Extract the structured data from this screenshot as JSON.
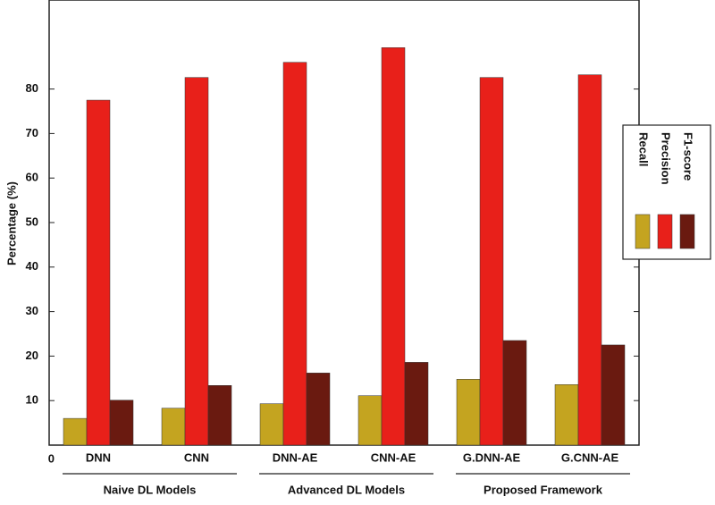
{
  "chart_data": {
    "type": "bar",
    "y_label": "Percentage (%)",
    "categories": [
      "DNN",
      "CNN",
      "DNN-AE",
      "CNN-AE",
      "G.DNN-AE",
      "G.CNN-AE"
    ],
    "groups": [
      {
        "name": "Naive DL Models",
        "span": 2
      },
      {
        "name": "Advanced DL Models",
        "span": 2
      },
      {
        "name": "Proposed Framework",
        "span": 2
      }
    ],
    "series": [
      {
        "name": "Recall",
        "color": "#c4a420",
        "values": [
          6,
          8.3,
          9.3,
          11.1,
          14.8,
          13.6
        ]
      },
      {
        "name": "Precision",
        "color": "#e8201a",
        "values": [
          77.5,
          82.6,
          86,
          89.3,
          82.6,
          83.2
        ]
      },
      {
        "name": "F1-score",
        "color": "#6a1a10",
        "values": [
          10.1,
          13.4,
          16.2,
          18.6,
          23.5,
          22.5
        ]
      }
    ],
    "ylim": [
      0,
      100
    ],
    "yticks": [
      0,
      10,
      20,
      30,
      40,
      50,
      60,
      70,
      80
    ],
    "legend": "right"
  }
}
